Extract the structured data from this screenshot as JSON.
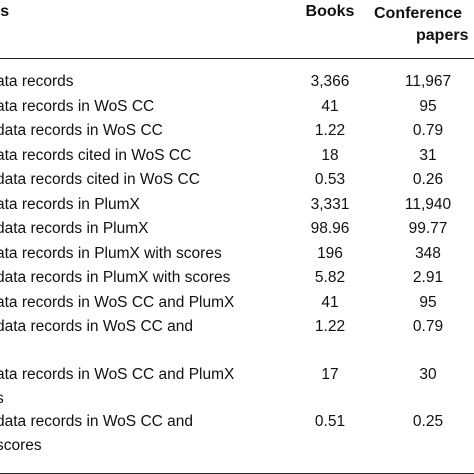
{
  "table": {
    "headers": [
      "rs",
      "Books",
      "Conference",
      "papers"
    ],
    "rows": [
      {
        "label": "ata records",
        "label2": "",
        "books": "3,366",
        "conf": "11,967"
      },
      {
        "label": "ata records in WoS CC",
        "label2": "",
        "books": "41",
        "conf": "95"
      },
      {
        "label": "data records in WoS CC",
        "label2": "",
        "books": "1.22",
        "conf": "0.79"
      },
      {
        "label": "ata records cited in WoS CC",
        "label2": "",
        "books": "18",
        "conf": "31"
      },
      {
        "label": "data records cited in WoS CC",
        "label2": "",
        "books": "0.53",
        "conf": "0.26"
      },
      {
        "label": "ata records in PlumX",
        "label2": "",
        "books": "3,331",
        "conf": "11,940"
      },
      {
        "label": " data records in PlumX",
        "label2": "",
        "books": "98.96",
        "conf": "99.77"
      },
      {
        "label": "ata records in PlumX with scores",
        "label2": "",
        "books": "196",
        "conf": "348"
      },
      {
        "label": " data records in PlumX with scores",
        "label2": "",
        "books": "5.82",
        "conf": "2.91"
      },
      {
        "label": "ata records in WoS CC and PlumX",
        "label2": "",
        "books": "41",
        "conf": "95"
      },
      {
        "label": " data records in WoS CC and",
        "label2": "",
        "books": "1.22",
        "conf": "0.79"
      },
      {
        "label": "ata records in WoS CC and PlumX",
        "label2": "s",
        "books": "17",
        "conf": "30"
      },
      {
        "label": " data records in WoS CC and",
        "label2": "scores",
        "books": "0.51",
        "conf": "0.25"
      }
    ]
  }
}
